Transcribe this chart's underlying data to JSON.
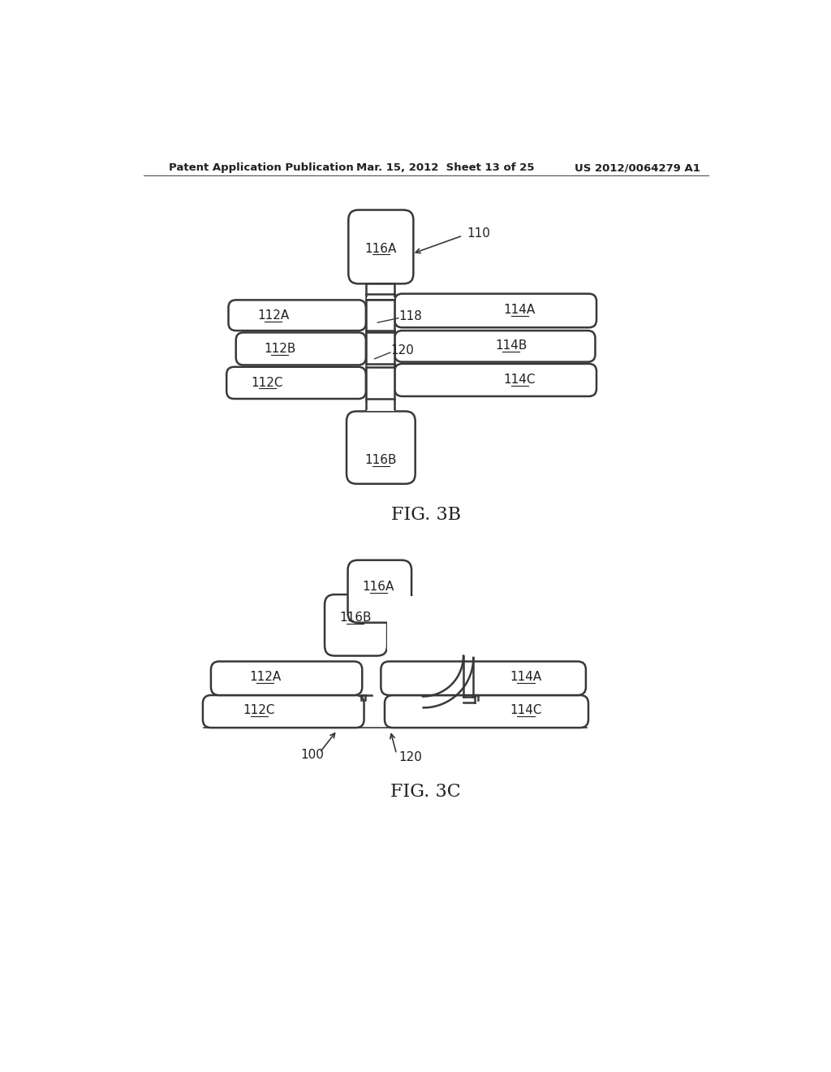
{
  "bg_color": "#ffffff",
  "line_color": "#383838",
  "header_left": "Patent Application Publication",
  "header_mid": "Mar. 15, 2012  Sheet 13 of 25",
  "header_right": "US 2012/0064279 A1",
  "fig3b_label": "FIG. 3B",
  "fig3c_label": "FIG. 3C"
}
